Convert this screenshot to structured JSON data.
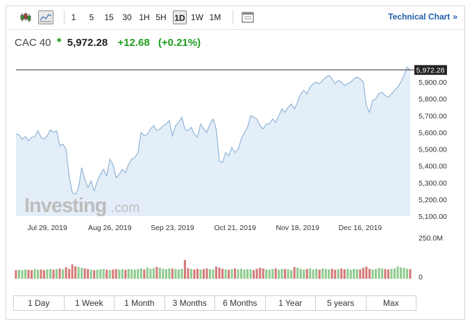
{
  "toolbar": {
    "chart_type_icons": [
      {
        "icon": "candlestick-icon",
        "active": false
      },
      {
        "icon": "area-line-icon",
        "active": true
      }
    ],
    "intervals": [
      "1",
      "5",
      "15",
      "30",
      "1H",
      "5H",
      "1D",
      "1W",
      "1M"
    ],
    "active_interval": "1D",
    "settings_icon": "window-icon",
    "technical_chart_label": "Technical Chart",
    "technical_chart_arrow": "»"
  },
  "quote": {
    "name": "CAC 40",
    "direction_icon": "up-arrow-icon",
    "direction_glyph": "◆",
    "price": "5,972.28",
    "change": "+12.68",
    "change_percent": "(+0.21%)"
  },
  "watermark": {
    "brand": "Investing",
    "suffix": ".com"
  },
  "volume_axis": {
    "top_label": "250.0M",
    "bottom_label": "0"
  },
  "ranges": [
    "1 Day",
    "1 Week",
    "1 Month",
    "3 Months",
    "6 Months",
    "1 Year",
    "5 years",
    "Max"
  ],
  "colors": {
    "line": "#8fb4d8",
    "area": "#e4eef8",
    "volume_up": "#8fcb8f",
    "volume_down": "#d47a7a",
    "current_price_line": "#333333",
    "change_positive": "#1e9e1e",
    "link": "#1f5ea8"
  },
  "chart_data": {
    "type": "area",
    "title": "",
    "xlabel": "",
    "ylabel": "",
    "ylim": [
      5100,
      6000
    ],
    "yticks": [
      "5,100.00",
      "5,200.00",
      "5,300.00",
      "5,400.00",
      "5,500.00",
      "5,600.00",
      "5,700.00",
      "5,800.00",
      "5,900.00"
    ],
    "xticks": [
      {
        "label": "Jul 29, 2019",
        "at": 10
      },
      {
        "label": "Aug 26, 2019",
        "at": 30
      },
      {
        "label": "Sep 23, 2019",
        "at": 50
      },
      {
        "label": "Oct 21, 2019",
        "at": 70
      },
      {
        "label": "Nov 18, 2019",
        "at": 90
      },
      {
        "label": "Dec 16, 2019",
        "at": 110
      }
    ],
    "current_price": 5972.28,
    "current_price_label": "5,972.28",
    "series": [
      {
        "values": [
          5590,
          5585,
          5560,
          5575,
          5550,
          5570,
          5575,
          5610,
          5570,
          5560,
          5580,
          5615,
          5600,
          5610,
          5520,
          5530,
          5500,
          5340,
          5240,
          5230,
          5270,
          5390,
          5320,
          5270,
          5310,
          5250,
          5310,
          5350,
          5380,
          5340,
          5440,
          5410,
          5330,
          5350,
          5380,
          5360,
          5410,
          5440,
          5450,
          5480,
          5600,
          5580,
          5590,
          5620,
          5640,
          5610,
          5620,
          5640,
          5650,
          5670,
          5580,
          5640,
          5660,
          5690,
          5620,
          5610,
          5630,
          5590,
          5570,
          5650,
          5620,
          5600,
          5650,
          5680,
          5620,
          5430,
          5420,
          5480,
          5460,
          5510,
          5480,
          5500,
          5560,
          5600,
          5630,
          5700,
          5690,
          5680,
          5640,
          5620,
          5650,
          5650,
          5680,
          5660,
          5700,
          5740,
          5720,
          5750,
          5770,
          5740,
          5780,
          5830,
          5850,
          5830,
          5870,
          5890,
          5900,
          5890,
          5910,
          5930,
          5940,
          5920,
          5890,
          5910,
          5900,
          5880,
          5890,
          5900,
          5920,
          5930,
          5920,
          5900,
          5760,
          5720,
          5790,
          5800,
          5830,
          5840,
          5820,
          5810,
          5830,
          5850,
          5870,
          5900,
          5940,
          5990,
          5972
        ],
        "volumes": [
          55,
          58,
          56,
          60,
          57,
          55,
          62,
          58,
          60,
          56,
          59,
          63,
          58,
          61,
          65,
          60,
          74,
          64,
          92,
          80,
          76,
          70,
          66,
          62,
          58,
          55,
          58,
          60,
          62,
          58,
          56,
          59,
          62,
          58,
          61,
          57,
          63,
          60,
          58,
          62,
          66,
          60,
          72,
          64,
          68,
          76,
          70,
          64,
          62,
          66,
          65,
          62,
          60,
          64,
          120,
          68,
          62,
          60,
          64,
          58,
          62,
          66,
          62,
          60,
          78,
          72,
          64,
          60,
          58,
          62,
          66,
          60,
          64,
          58,
          62,
          60,
          56,
          64,
          70,
          66,
          60,
          58,
          62,
          66,
          58,
          64,
          62,
          60,
          56,
          75,
          70,
          64,
          58,
          62,
          66,
          60,
          64,
          58,
          66,
          62,
          60,
          64,
          58,
          62,
          66,
          60,
          62,
          58,
          64,
          62,
          60,
          70,
          78,
          64,
          58,
          62,
          68,
          66,
          62,
          60,
          64,
          66,
          80,
          72,
          70,
          64,
          62
        ],
        "volume_up": [
          false,
          true,
          true,
          true,
          false,
          false,
          true,
          true,
          false,
          false,
          true,
          true,
          false,
          true,
          false,
          true,
          false,
          false,
          false,
          false,
          true,
          true,
          false,
          false,
          true,
          false,
          true,
          true,
          true,
          false,
          true,
          false,
          false,
          true,
          true,
          false,
          true,
          true,
          true,
          true,
          true,
          false,
          true,
          true,
          true,
          false,
          true,
          true,
          true,
          true,
          false,
          true,
          true,
          true,
          false,
          false,
          true,
          false,
          false,
          true,
          false,
          false,
          true,
          true,
          false,
          false,
          false,
          true,
          false,
          true,
          false,
          true,
          true,
          true,
          true,
          true,
          false,
          false,
          false,
          false,
          true,
          true,
          true,
          false,
          true,
          true,
          false,
          true,
          true,
          false,
          true,
          true,
          true,
          false,
          true,
          true,
          true,
          false,
          true,
          true,
          true,
          false,
          false,
          true,
          false,
          false,
          true,
          true,
          true,
          true,
          false,
          false,
          false,
          false,
          true,
          true,
          true,
          true,
          false,
          false,
          true,
          true,
          true,
          true,
          true,
          true,
          false
        ]
      }
    ],
    "volume_max": 250,
    "legend": "none",
    "grid": false
  }
}
